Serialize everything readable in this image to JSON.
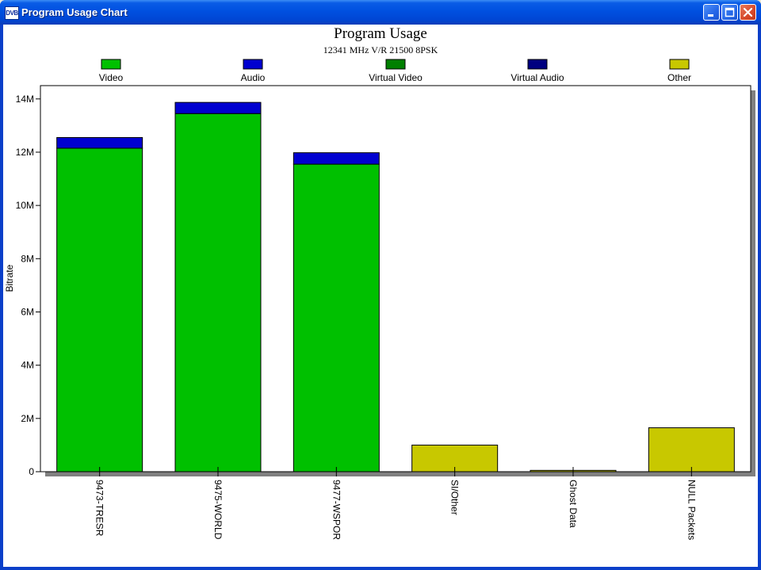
{
  "window": {
    "title": "Program Usage Chart",
    "app_icon_text": "DVB",
    "controls": [
      "minimize",
      "maximize",
      "close"
    ]
  },
  "chart_data": {
    "type": "bar",
    "stacked": true,
    "title": "Program Usage",
    "subtitle": "12341 MHz V/R 21500 8PSK",
    "xlabel": "",
    "ylabel": "Bitrate",
    "ylim": [
      0,
      14500000
    ],
    "yticks": [
      0,
      2000000,
      4000000,
      6000000,
      8000000,
      10000000,
      12000000,
      14000000
    ],
    "ytick_labels": [
      "0",
      "2M",
      "4M",
      "6M",
      "8M",
      "10M",
      "12M",
      "14M"
    ],
    "legend_position": "top",
    "categories": [
      "9473-TRESR",
      "9475-WORLD",
      "9477-WSPOR",
      "SI/Other",
      "Ghost Data",
      "NULL Packets"
    ],
    "series": [
      {
        "name": "Video",
        "color": "#00c000",
        "values": [
          12150000,
          13450000,
          11550000,
          0,
          0,
          0
        ]
      },
      {
        "name": "Audio",
        "color": "#0000d0",
        "values": [
          400000,
          420000,
          430000,
          0,
          0,
          0
        ]
      },
      {
        "name": "Virtual Video",
        "color": "#008000",
        "values": [
          0,
          0,
          0,
          0,
          0,
          0
        ]
      },
      {
        "name": "Virtual Audio",
        "color": "#000080",
        "values": [
          0,
          0,
          0,
          0,
          0,
          0
        ]
      },
      {
        "name": "Other",
        "color": "#c8c800",
        "values": [
          0,
          0,
          0,
          1000000,
          50000,
          1650000
        ]
      }
    ]
  }
}
